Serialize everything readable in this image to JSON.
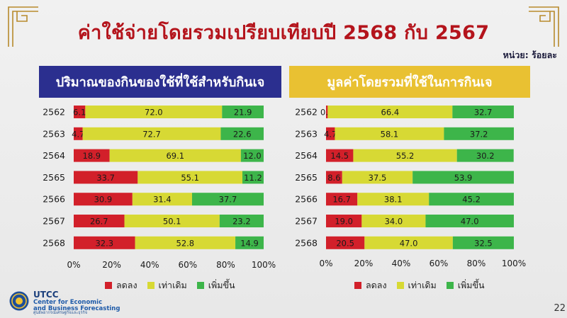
{
  "title": "ค่าใช้จ่ายโดยรวมเปรียบเทียบปี 2568 กับ 2567",
  "unit_label": "หน่วย: ร้อยละ",
  "page_number": "22",
  "logo": {
    "name": "UTCC",
    "line1": "Center for Economic",
    "line2": "and Business Forecasting",
    "line3": "ศูนย์พยากรณ์เศรษฐกิจและธุรกิจ"
  },
  "colors": {
    "decrease": "#d2202a",
    "same": "#d7d934",
    "increase": "#3db54a"
  },
  "chart_data": [
    {
      "type": "bar",
      "orientation": "horizontal",
      "stacked": true,
      "title": "ปริมาณของกินของใช้ที่ใช้สำหรับกินเจ",
      "categories": [
        "2562",
        "2563",
        "2564",
        "2565",
        "2566",
        "2567",
        "2568"
      ],
      "series": [
        {
          "name": "ลดลง",
          "values": [
            6.1,
            4.7,
            18.9,
            33.7,
            30.9,
            26.7,
            32.3
          ],
          "labels": [
            "6.1",
            "4.7",
            "18.9",
            "33.7",
            "30.9",
            "26.7",
            "32.3"
          ]
        },
        {
          "name": "เท่าเดิม",
          "values": [
            72.0,
            72.7,
            69.1,
            55.1,
            31.4,
            50.1,
            52.8
          ],
          "labels": [
            "72.0",
            "72.7",
            "69.1",
            "55.1",
            "31.4",
            "50.1",
            "52.8"
          ]
        },
        {
          "name": "เพิ่มขึ้น",
          "values": [
            21.9,
            22.6,
            12.0,
            11.2,
            37.7,
            23.2,
            14.9
          ],
          "labels": [
            "21.9",
            "22.6",
            "12.0",
            "11.2",
            "37.7",
            "23.2",
            "14.9"
          ]
        }
      ],
      "xlim": [
        0,
        100
      ],
      "xticks": [
        "0%",
        "20%",
        "40%",
        "60%",
        "80%",
        "100%"
      ],
      "legend": "bottom"
    },
    {
      "type": "bar",
      "orientation": "horizontal",
      "stacked": true,
      "title": "มูลค่าโดยรวมที่ใช้ในการกินเจ",
      "categories": [
        "2562",
        "2563",
        "2564",
        "2565",
        "2566",
        "2567",
        "2568"
      ],
      "series": [
        {
          "name": "ลดลง",
          "values": [
            0.9,
            4.7,
            14.5,
            8.6,
            16.7,
            19.0,
            20.5
          ],
          "labels": [
            "0.9",
            "4.7",
            "14.5",
            "8.6",
            "16.7",
            "19.0",
            "20.5"
          ]
        },
        {
          "name": "เท่าเดิม",
          "values": [
            66.4,
            58.1,
            55.2,
            37.5,
            38.1,
            34.0,
            47.0
          ],
          "labels": [
            "66.4",
            "58.1",
            "55.2",
            "37.5",
            "38.1",
            "34.0",
            "47.0"
          ]
        },
        {
          "name": "เพิ่มขึ้น",
          "values": [
            32.7,
            37.2,
            30.2,
            53.9,
            45.2,
            47.0,
            32.5
          ],
          "labels": [
            "32.7",
            "37.2",
            "30.2",
            "53.9",
            "45.2",
            "47.0",
            "32.5"
          ]
        }
      ],
      "xlim": [
        0,
        100
      ],
      "xticks": [
        "0%",
        "20%",
        "40%",
        "60%",
        "80%",
        "100%"
      ],
      "legend": "bottom"
    }
  ]
}
